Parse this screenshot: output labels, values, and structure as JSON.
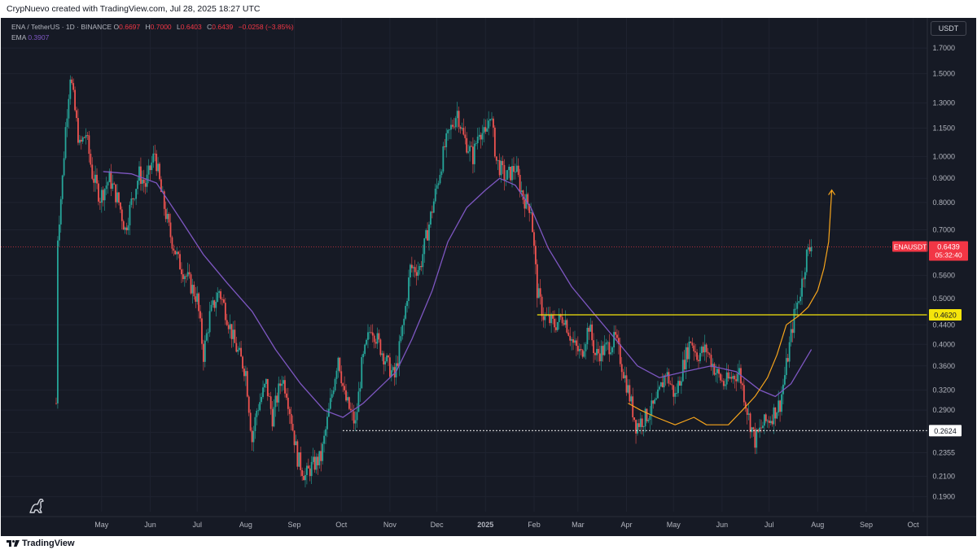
{
  "credit": "CrypNuevo created with TradingView.com, Jul 28, 2025 18:27 UTC",
  "legend": {
    "symbol": "ENA / TetherUS · 1D · BINANCE",
    "o_label": "O",
    "o": "0.6697",
    "h_label": "H",
    "h": "0.7000",
    "l_label": "L",
    "l": "0.6403",
    "c_label": "C",
    "c": "0.6439",
    "change": "−0.0258 (−3.85%)",
    "ema_label": "EMA",
    "ema_value": "0.3907"
  },
  "currency": "USDT",
  "footer": "TradingView",
  "colors": {
    "bg": "#161a25",
    "up": "#26a69a",
    "down": "#ef5350",
    "ema": "#7e57c2",
    "level": "#f5e50b",
    "projection": "#f7a51c",
    "label_red": "#f23645"
  },
  "chart_data": {
    "type": "candlestick",
    "symbol": "ENAUSDT",
    "y_scale": "log",
    "y_ticks": [
      0.19,
      0.21,
      0.2355,
      0.26,
      0.29,
      0.32,
      0.36,
      0.4,
      0.44,
      0.5,
      0.56,
      0.7,
      0.8,
      0.9,
      1.0,
      1.15,
      1.3,
      1.5,
      1.7
    ],
    "y_tick_labels": [
      "0.1900",
      "0.2100",
      "0.2355",
      "",
      "0.2900",
      "0.3200",
      "0.3600",
      "0.4000",
      "0.4400",
      "0.5000",
      "0.5600",
      "0.7000",
      "0.8000",
      "0.9000",
      "1.0000",
      "1.1500",
      "1.3000",
      "1.5000",
      "1.7000"
    ],
    "x_ticks": [
      "May",
      "Jun",
      "Jul",
      "Aug",
      "Sep",
      "Oct",
      "Nov",
      "Dec",
      "2025",
      "Feb",
      "Mar",
      "Apr",
      "May",
      "Jun",
      "Jul",
      "Aug",
      "Sep",
      "Oct"
    ],
    "x_range": [
      "2024-04-02",
      "2025-10-10"
    ],
    "y_range": [
      0.178,
      1.82
    ],
    "price_path": [
      [
        "2024-04-02",
        0.3
      ],
      [
        "2024-04-03",
        0.68
      ],
      [
        "2024-04-06",
        0.9
      ],
      [
        "2024-04-08",
        1.15
      ],
      [
        "2024-04-11",
        1.5
      ],
      [
        "2024-04-14",
        1.25
      ],
      [
        "2024-04-17",
        1.05
      ],
      [
        "2024-04-21",
        1.12
      ],
      [
        "2024-04-25",
        0.92
      ],
      [
        "2024-04-30",
        0.82
      ],
      [
        "2024-05-06",
        0.9
      ],
      [
        "2024-05-12",
        0.8
      ],
      [
        "2024-05-16",
        0.7
      ],
      [
        "2024-05-20",
        0.8
      ],
      [
        "2024-05-25",
        0.92
      ],
      [
        "2024-05-29",
        0.87
      ],
      [
        "2024-06-04",
        1.02
      ],
      [
        "2024-06-08",
        0.84
      ],
      [
        "2024-06-14",
        0.68
      ],
      [
        "2024-06-19",
        0.6
      ],
      [
        "2024-06-25",
        0.55
      ],
      [
        "2024-07-01",
        0.5
      ],
      [
        "2024-07-05",
        0.38
      ],
      [
        "2024-07-09",
        0.46
      ],
      [
        "2024-07-15",
        0.52
      ],
      [
        "2024-07-20",
        0.46
      ],
      [
        "2024-07-25",
        0.4
      ],
      [
        "2024-08-01",
        0.35
      ],
      [
        "2024-08-05",
        0.25
      ],
      [
        "2024-08-08",
        0.29
      ],
      [
        "2024-08-14",
        0.33
      ],
      [
        "2024-08-18",
        0.28
      ],
      [
        "2024-08-24",
        0.34
      ],
      [
        "2024-08-27",
        0.32
      ],
      [
        "2024-09-03",
        0.23
      ],
      [
        "2024-09-08",
        0.21
      ],
      [
        "2024-09-12",
        0.22
      ],
      [
        "2024-09-18",
        0.23
      ],
      [
        "2024-09-24",
        0.3
      ],
      [
        "2024-09-29",
        0.38
      ],
      [
        "2024-10-03",
        0.31
      ],
      [
        "2024-10-10",
        0.27
      ],
      [
        "2024-10-14",
        0.36
      ],
      [
        "2024-10-20",
        0.44
      ],
      [
        "2024-10-25",
        0.4
      ],
      [
        "2024-10-31",
        0.36
      ],
      [
        "2024-11-04",
        0.34
      ],
      [
        "2024-11-10",
        0.45
      ],
      [
        "2024-11-14",
        0.58
      ],
      [
        "2024-11-20",
        0.58
      ],
      [
        "2024-11-26",
        0.72
      ],
      [
        "2024-12-02",
        0.9
      ],
      [
        "2024-12-06",
        1.05
      ],
      [
        "2024-12-10",
        1.15
      ],
      [
        "2024-12-14",
        1.25
      ],
      [
        "2024-12-18",
        1.1
      ],
      [
        "2024-12-24",
        1.0
      ],
      [
        "2024-12-28",
        1.15
      ],
      [
        "2025-01-01",
        1.1
      ],
      [
        "2025-01-04",
        1.25
      ],
      [
        "2025-01-08",
        0.98
      ],
      [
        "2025-01-14",
        0.9
      ],
      [
        "2025-01-20",
        0.95
      ],
      [
        "2025-01-25",
        0.82
      ],
      [
        "2025-01-30",
        0.78
      ],
      [
        "2025-02-03",
        0.52
      ],
      [
        "2025-02-07",
        0.46
      ],
      [
        "2025-02-14",
        0.44
      ],
      [
        "2025-02-20",
        0.46
      ],
      [
        "2025-02-26",
        0.4
      ],
      [
        "2025-03-03",
        0.38
      ],
      [
        "2025-03-08",
        0.44
      ],
      [
        "2025-03-12",
        0.38
      ],
      [
        "2025-03-18",
        0.39
      ],
      [
        "2025-03-25",
        0.41
      ],
      [
        "2025-04-02",
        0.32
      ],
      [
        "2025-04-07",
        0.27
      ],
      [
        "2025-04-13",
        0.28
      ],
      [
        "2025-04-20",
        0.3
      ],
      [
        "2025-04-26",
        0.35
      ],
      [
        "2025-05-02",
        0.31
      ],
      [
        "2025-05-08",
        0.37
      ],
      [
        "2025-05-12",
        0.41
      ],
      [
        "2025-05-16",
        0.38
      ],
      [
        "2025-05-22",
        0.39
      ],
      [
        "2025-05-28",
        0.35
      ],
      [
        "2025-06-02",
        0.33
      ],
      [
        "2025-06-07",
        0.34
      ],
      [
        "2025-06-12",
        0.35
      ],
      [
        "2025-06-18",
        0.28
      ],
      [
        "2025-06-22",
        0.25
      ],
      [
        "2025-06-27",
        0.27
      ],
      [
        "2025-07-02",
        0.28
      ],
      [
        "2025-07-08",
        0.3
      ],
      [
        "2025-07-12",
        0.36
      ],
      [
        "2025-07-17",
        0.46
      ],
      [
        "2025-07-21",
        0.52
      ],
      [
        "2025-07-25",
        0.62
      ],
      [
        "2025-07-28",
        0.644
      ]
    ],
    "ema_path": [
      [
        "2024-05-02",
        0.93
      ],
      [
        "2024-05-20",
        0.92
      ],
      [
        "2024-06-05",
        0.88
      ],
      [
        "2024-06-20",
        0.74
      ],
      [
        "2024-07-05",
        0.62
      ],
      [
        "2024-07-20",
        0.54
      ],
      [
        "2024-08-05",
        0.47
      ],
      [
        "2024-08-20",
        0.39
      ],
      [
        "2024-09-05",
        0.33
      ],
      [
        "2024-09-20",
        0.29
      ],
      [
        "2024-10-02",
        0.28
      ],
      [
        "2024-10-15",
        0.3
      ],
      [
        "2024-10-28",
        0.33
      ],
      [
        "2024-11-05",
        0.35
      ],
      [
        "2024-11-15",
        0.41
      ],
      [
        "2024-11-28",
        0.52
      ],
      [
        "2024-12-08",
        0.66
      ],
      [
        "2024-12-20",
        0.78
      ],
      [
        "2025-01-01",
        0.85
      ],
      [
        "2025-01-10",
        0.9
      ],
      [
        "2025-01-20",
        0.87
      ],
      [
        "2025-01-30",
        0.78
      ],
      [
        "2025-02-10",
        0.64
      ],
      [
        "2025-02-25",
        0.53
      ],
      [
        "2025-03-10",
        0.47
      ],
      [
        "2025-03-25",
        0.41
      ],
      [
        "2025-04-08",
        0.36
      ],
      [
        "2025-04-22",
        0.34
      ],
      [
        "2025-05-08",
        0.35
      ],
      [
        "2025-05-25",
        0.36
      ],
      [
        "2025-06-10",
        0.35
      ],
      [
        "2025-06-25",
        0.32
      ],
      [
        "2025-07-05",
        0.31
      ],
      [
        "2025-07-15",
        0.33
      ],
      [
        "2025-07-28",
        0.39
      ]
    ],
    "projection_path": [
      [
        "2025-04-02",
        0.3
      ],
      [
        "2025-04-10",
        0.29
      ],
      [
        "2025-04-20",
        0.28
      ],
      [
        "2025-05-02",
        0.27
      ],
      [
        "2025-05-14",
        0.28
      ],
      [
        "2025-05-22",
        0.27
      ],
      [
        "2025-06-05",
        0.27
      ],
      [
        "2025-06-14",
        0.29
      ],
      [
        "2025-06-22",
        0.31
      ],
      [
        "2025-06-30",
        0.34
      ],
      [
        "2025-07-06",
        0.38
      ],
      [
        "2025-07-12",
        0.44
      ],
      [
        "2025-07-20",
        0.46
      ],
      [
        "2025-07-26",
        0.48
      ],
      [
        "2025-08-01",
        0.52
      ],
      [
        "2025-08-05",
        0.58
      ],
      [
        "2025-08-08",
        0.66
      ],
      [
        "2025-08-10",
        0.85
      ]
    ],
    "levels": [
      {
        "price": 0.462,
        "label": "0.4620",
        "style": "solid",
        "start": "2025-02-03"
      },
      {
        "price": 0.2624,
        "label": "0.2624",
        "style": "dotted",
        "start": "2024-10-02"
      }
    ],
    "last_price": {
      "symbol": "ENAUSDT",
      "price": "0.6439",
      "countdown": "05:32:40"
    }
  }
}
